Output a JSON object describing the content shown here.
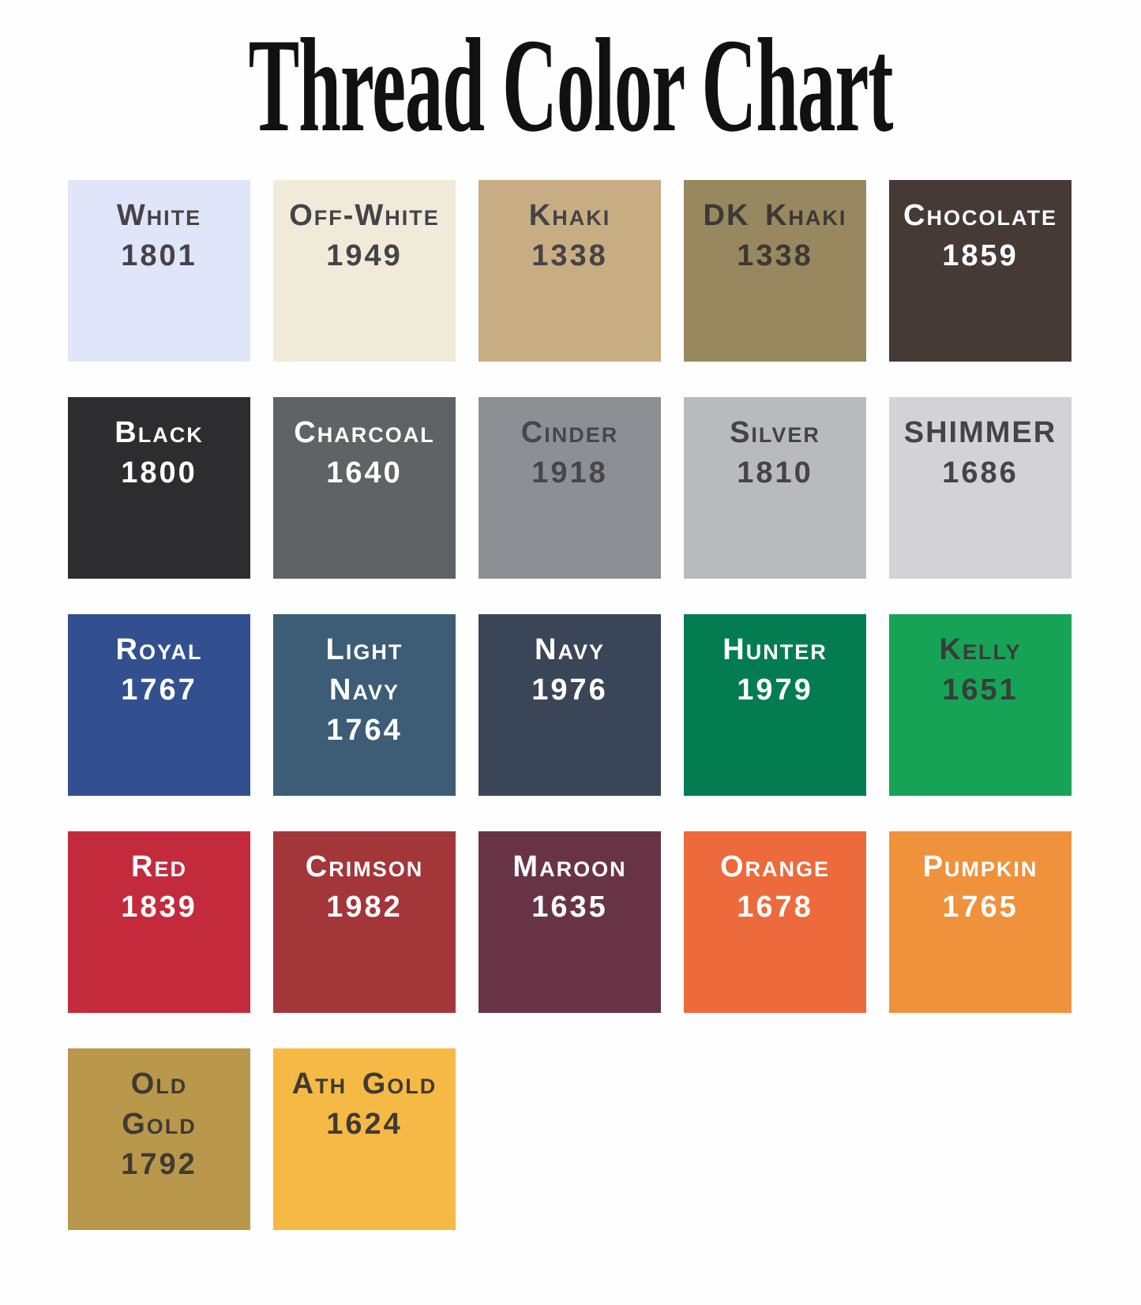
{
  "title": "Thread Color Chart",
  "colors": {
    "page_background": "#fefefe",
    "title_text": "#111111",
    "label_dark": "#454348",
    "label_light": "#ffffff"
  },
  "swatches": [
    {
      "name": "White",
      "code": "1801",
      "hex": "#e1e5f9",
      "label_color": "#454348"
    },
    {
      "name": "Off-White",
      "code": "1949",
      "hex": "#f0ebd9",
      "label_color": "#454348"
    },
    {
      "name": "Khaki",
      "code": "1338",
      "hex": "#c8ad82",
      "label_color": "#454348"
    },
    {
      "name": "DK Khaki",
      "code": "1338",
      "hex": "#97885f",
      "label_color": "#3c3835"
    },
    {
      "name": "Chocolate",
      "code": "1859",
      "hex": "#463a36",
      "label_color": "#ffffff"
    },
    {
      "name": "Black",
      "code": "1800",
      "hex": "#2d2c2f",
      "label_color": "#ffffff"
    },
    {
      "name": "Charcoal",
      "code": "1640",
      "hex": "#616265",
      "label_color": "#ffffff"
    },
    {
      "name": "Cinder",
      "code": "1918",
      "hex": "#8e8f94",
      "label_color": "#47464a"
    },
    {
      "name": "Silver",
      "code": "1810",
      "hex": "#b9babc",
      "label_color": "#454348"
    },
    {
      "name": "SHIMMER",
      "code": "1686",
      "hex": "#d3d3d5",
      "label_color": "#454348"
    },
    {
      "name": "Royal",
      "code": "1767",
      "hex": "#32508f",
      "label_color": "#ffffff"
    },
    {
      "name": "Light\nNavy",
      "code": "1764",
      "hex": "#3c5d75",
      "label_color": "#ffffff"
    },
    {
      "name": "Navy",
      "code": "1976",
      "hex": "#3a4558",
      "label_color": "#ffffff"
    },
    {
      "name": "Hunter",
      "code": "1979",
      "hex": "#047c52",
      "label_color": "#ffffff"
    },
    {
      "name": "Kelly",
      "code": "1651",
      "hex": "#17a355",
      "label_color": "#3b3a3d"
    },
    {
      "name": "Red",
      "code": "1839",
      "hex": "#c32b3d",
      "label_color": "#ffffff"
    },
    {
      "name": "Crimson",
      "code": "1982",
      "hex": "#a33639",
      "label_color": "#ffffff"
    },
    {
      "name": "Maroon",
      "code": "1635",
      "hex": "#693346",
      "label_color": "#ffffff"
    },
    {
      "name": "Orange",
      "code": "1678",
      "hex": "#ec6a3c",
      "label_color": "#ffffff"
    },
    {
      "name": "Pumpkin",
      "code": "1765",
      "hex": "#f0913b",
      "label_color": "#ffffff"
    },
    {
      "name": "Old\nGold",
      "code": "1792",
      "hex": "#b9974b",
      "label_color": "#3f3b33"
    },
    {
      "name": "Ath Gold",
      "code": "1624",
      "hex": "#f6b946",
      "label_color": "#3f3b33"
    }
  ]
}
